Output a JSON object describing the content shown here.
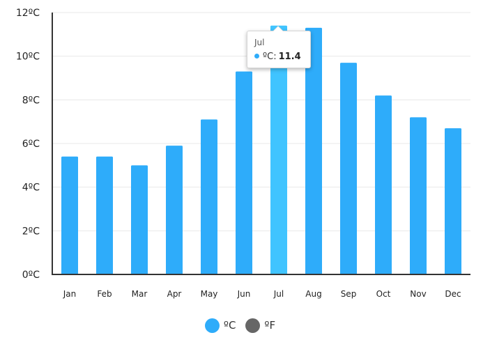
{
  "chart_data": {
    "type": "bar",
    "categories": [
      "Jan",
      "Feb",
      "Mar",
      "Apr",
      "May",
      "Jun",
      "Jul",
      "Aug",
      "Sep",
      "Oct",
      "Nov",
      "Dec"
    ],
    "series": [
      {
        "name": "ºC",
        "values": [
          5.4,
          5.4,
          5.0,
          5.9,
          7.1,
          9.3,
          11.4,
          11.3,
          9.7,
          8.2,
          7.2,
          6.7
        ],
        "color": "#2eacfa"
      }
    ],
    "ylim": [
      0,
      12
    ],
    "yticks": [
      {
        "value": 0,
        "label": "0ºC"
      },
      {
        "value": 2,
        "label": "2ºC"
      },
      {
        "value": 4,
        "label": "4ºC"
      },
      {
        "value": 6,
        "label": "6ºC"
      },
      {
        "value": 8,
        "label": "8ºC"
      },
      {
        "value": 10,
        "label": "10ºC"
      },
      {
        "value": 12,
        "label": "12ºC"
      }
    ],
    "grid": true,
    "highlight": {
      "category": "Jul",
      "color": "#40c4ff"
    },
    "legend_position": "bottom"
  },
  "tooltip": {
    "title": "Jul",
    "series_label": "ºC:",
    "value": "11.4",
    "dot_color": "#2eacfa"
  },
  "legend": [
    {
      "label": "ºC",
      "color": "#2eacfa"
    },
    {
      "label": "ºF",
      "color": "#666666"
    }
  ],
  "colors": {
    "axis": "#333333",
    "grid": "#e8e8e8"
  }
}
